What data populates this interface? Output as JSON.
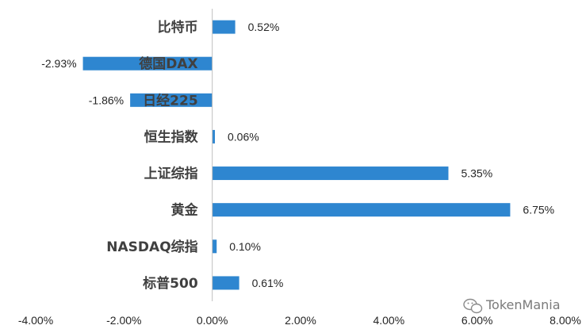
{
  "chart_data": {
    "type": "bar",
    "orientation": "horizontal",
    "categories": [
      "比特币",
      "德国DAX",
      "日经225",
      "恒生指数",
      "上证综指",
      "黄金",
      "NASDAQ综指",
      "标普500"
    ],
    "values": [
      0.52,
      -2.93,
      -1.86,
      0.06,
      5.35,
      6.75,
      0.1,
      0.61
    ],
    "value_labels": [
      "0.52%",
      "-2.93%",
      "-1.86%",
      "0.06%",
      "5.35%",
      "6.75%",
      "0.10%",
      "0.61%"
    ],
    "xlim": [
      -4,
      8
    ],
    "xticks": [
      -4,
      -2,
      0,
      2,
      4,
      6,
      8
    ],
    "xtick_labels": [
      "-4.00%",
      "-2.00%",
      "0.00%",
      "2.00%",
      "4.00%",
      "6.00%",
      "8.00%"
    ],
    "color": "#2E86D0",
    "grid": false,
    "legend": "none",
    "title": "",
    "xlabel": "",
    "ylabel": ""
  },
  "watermark": {
    "icon": "wechat-icon",
    "text": "TokenMania"
  }
}
